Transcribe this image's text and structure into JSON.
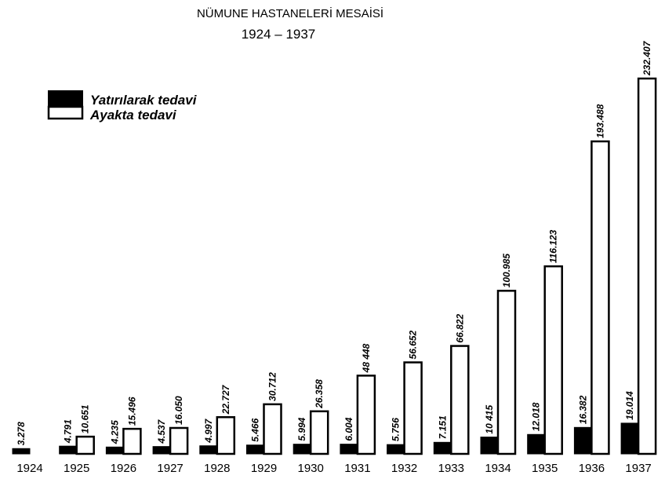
{
  "chart_data": {
    "type": "bar",
    "title": "NÜMUNE HASTANELERİ MESAİSİ",
    "subtitle": "1924 – 1937",
    "xlabel": "",
    "ylabel": "",
    "ylim": [
      0,
      250000
    ],
    "grid": false,
    "legend_position": "top-left",
    "categories": [
      "1924",
      "1925",
      "1926",
      "1927",
      "1928",
      "1929",
      "1930",
      "1931",
      "1932",
      "1933",
      "1934",
      "1935",
      "1936",
      "1937"
    ],
    "series": [
      {
        "name": "Yatırılarak tedavi",
        "color": "#000000",
        "values": [
          3278,
          4791,
          4235,
          4537,
          4997,
          5466,
          5994,
          6004,
          5756,
          7151,
          10415,
          12018,
          16382,
          19014
        ],
        "labels": [
          "3.278",
          "4.791",
          "4.235",
          "4.537",
          "4.997",
          "5.466",
          "5.994",
          "6.004",
          "5.756",
          "7.151",
          "10 415",
          "12.018",
          "16.382",
          "19.014"
        ]
      },
      {
        "name": "Ayakta tedavi",
        "color": "#ffffff",
        "values": [
          null,
          10651,
          15496,
          16050,
          22727,
          30712,
          26358,
          48448,
          56652,
          66822,
          100985,
          116123,
          193488,
          232407
        ],
        "labels": [
          "",
          "10.651",
          "15.496",
          "16.050",
          "22.727",
          "30.712",
          "26.358",
          "48 448",
          "56.652",
          "66.822",
          "100.985",
          "116.123",
          "193.488",
          "232.407"
        ]
      }
    ]
  }
}
